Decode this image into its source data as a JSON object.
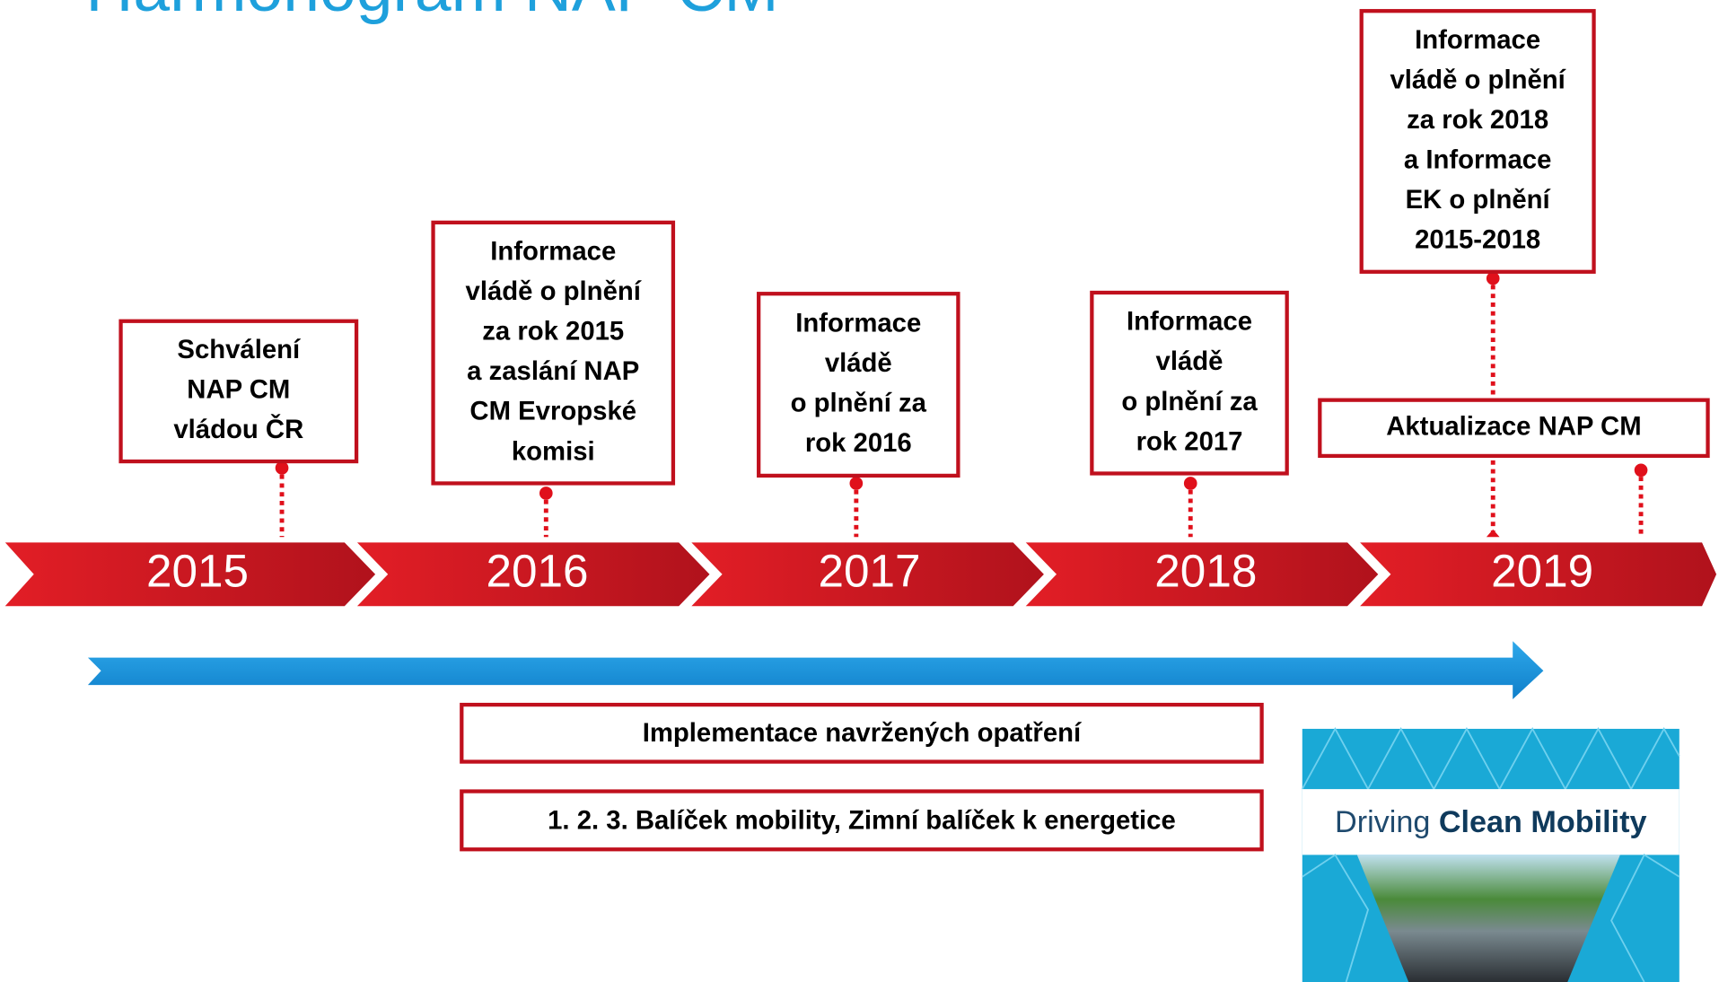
{
  "title": "Harmonogram NAP CM",
  "timeline": {
    "years": [
      "2015",
      "2016",
      "2017",
      "2018",
      "2019"
    ]
  },
  "milestones": [
    {
      "lines": [
        "Schválení",
        "NAP CM",
        "vládou ČR"
      ]
    },
    {
      "lines": [
        "Informace",
        "vládě o plnění",
        "za rok 2015",
        "a zaslání NAP",
        "CM Evropské",
        "komisi"
      ]
    },
    {
      "lines": [
        "Informace",
        "vládě",
        "o plnění za",
        "rok 2016"
      ]
    },
    {
      "lines": [
        "Informace",
        "vládě",
        "o plnění za",
        "rok 2017"
      ]
    },
    {
      "lines": [
        "Informace",
        "vládě o plnění",
        "za rok 2018",
        "a Informace",
        "EK o plnění",
        "2015-2018"
      ]
    },
    {
      "lines": [
        "Aktualizace NAP CM"
      ]
    }
  ],
  "implementation": [
    "Implementace navržených opatření",
    "1. 2. 3. Balíček mobility, Zimní balíček k energetice"
  ],
  "cover": {
    "prefix": "Driving",
    "emphasis": "Clean Mobility"
  }
}
